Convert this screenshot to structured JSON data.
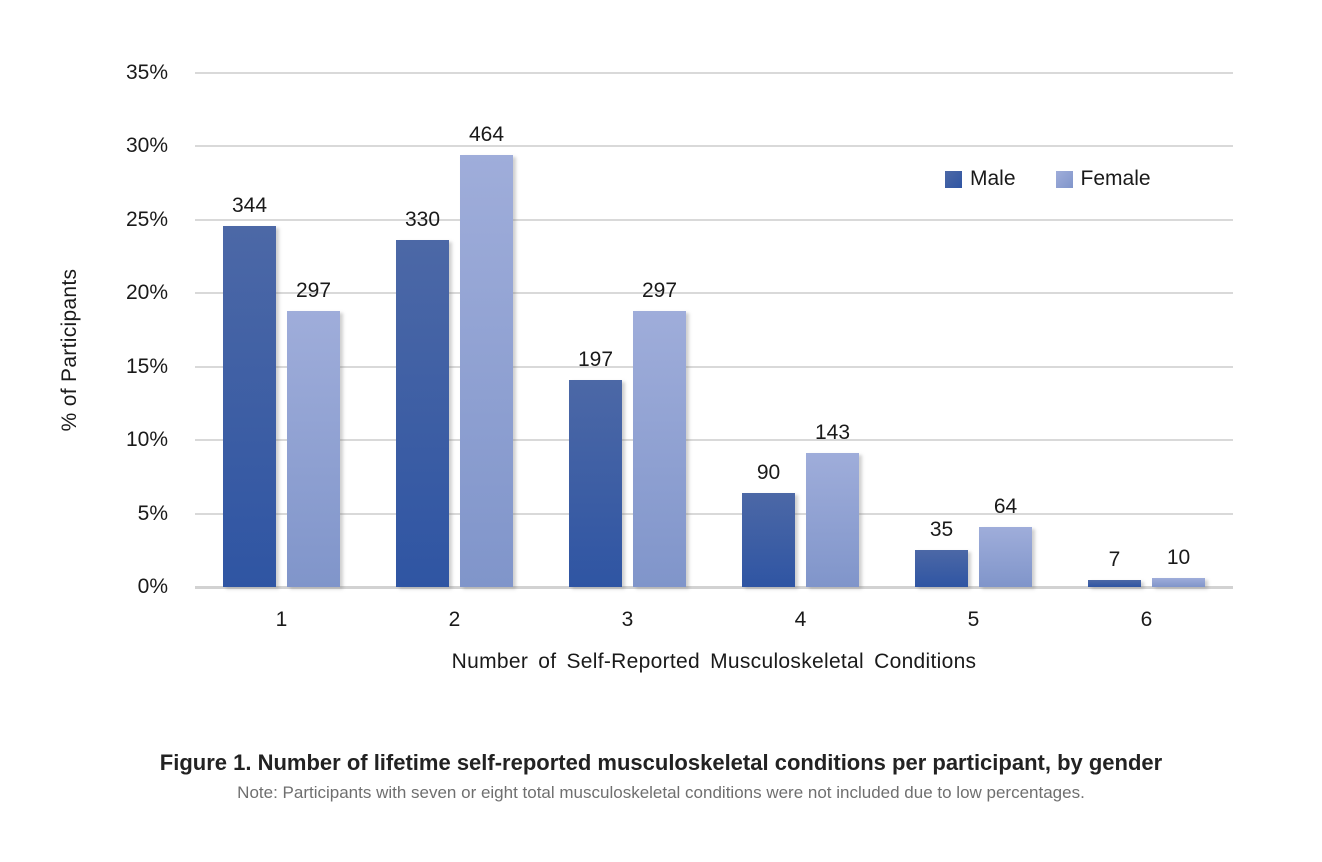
{
  "chart_data": {
    "type": "bar",
    "title": "",
    "categories": [
      "1",
      "2",
      "3",
      "4",
      "5",
      "6"
    ],
    "series": [
      {
        "name": "Male",
        "counts": [
          344,
          330,
          197,
          90,
          35,
          7
        ],
        "percents": [
          24.6,
          23.6,
          14.1,
          6.4,
          2.5,
          0.5
        ],
        "color_top": "#4c68a6",
        "color_bottom": "#2f55a3"
      },
      {
        "name": "Female",
        "counts": [
          297,
          464,
          297,
          143,
          64,
          10
        ],
        "percents": [
          18.8,
          29.4,
          18.8,
          9.1,
          4.1,
          0.65
        ],
        "color_top": "#9fadda",
        "color_bottom": "#8095ca"
      }
    ],
    "xlabel": "Number of Self-Reported Musculoskeletal Conditions",
    "ylabel": "% of Participants",
    "ylim": [
      0,
      35
    ],
    "ytick_labels": [
      "35%",
      "30%",
      "25%",
      "20%",
      "15%",
      "10%",
      "5%",
      "0%"
    ],
    "grid": true,
    "legend_position": "top-right"
  },
  "caption": {
    "title": "Figure 1. Number of lifetime self-reported musculoskeletal conditions per participant, by gender",
    "note": "Note: Participants with seven or eight total musculoskeletal conditions were not included due to low percentages."
  },
  "colors": {
    "gridline": "#d9d9d9",
    "text": "#1a1a1a",
    "note_text": "#6f6f6f"
  }
}
